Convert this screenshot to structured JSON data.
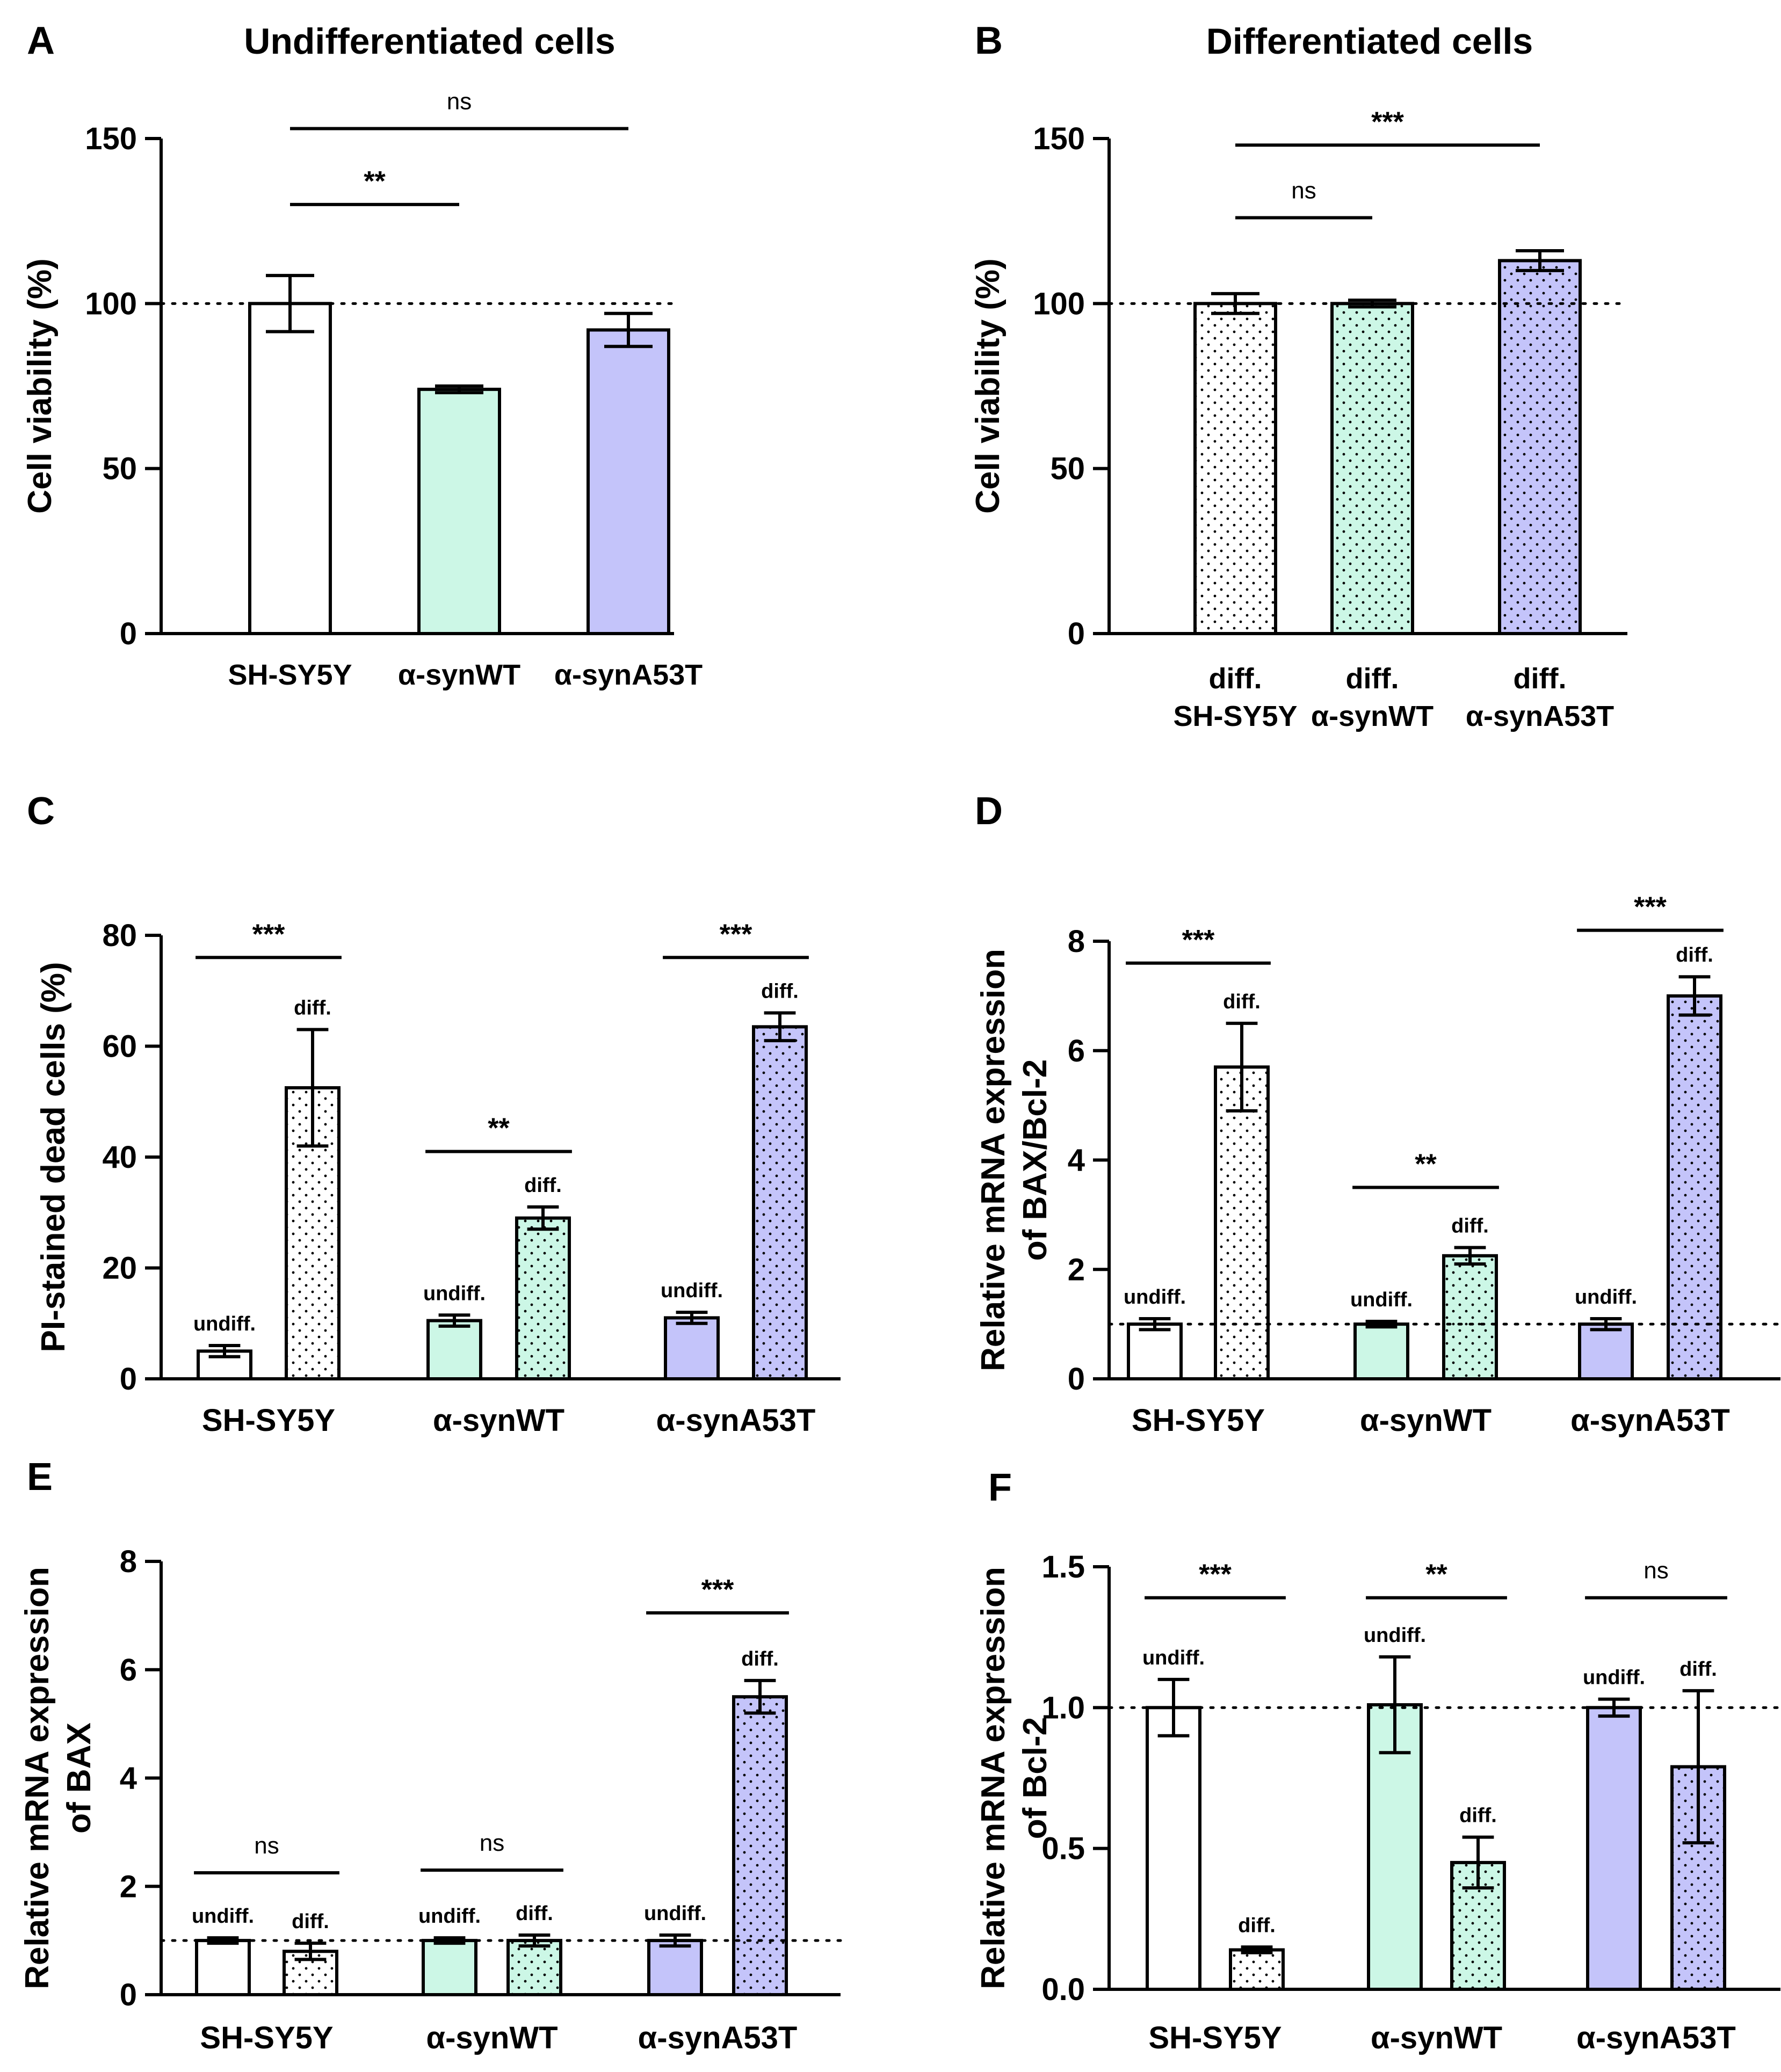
{
  "colors": {
    "control": "#ffffff",
    "wt": "#ccf7e6",
    "a53t": "#c4c4fa",
    "stroke": "#000000"
  },
  "chart_data": [
    {
      "id": "A",
      "panel_label": "A",
      "title": "Undifferentiated cells",
      "type": "bar",
      "ylabel": [
        "Cell viability (%)"
      ],
      "ylim": [
        0,
        150
      ],
      "yticks": [
        0,
        50,
        100,
        150
      ],
      "reference_line": 100,
      "groups": [
        {
          "label": [
            "SH-SY5Y"
          ],
          "bars": [
            {
              "value": 100,
              "error": 8.5,
              "color": "control",
              "dotted": false,
              "tag": ""
            }
          ]
        },
        {
          "label": [
            "α-synWT"
          ],
          "bars": [
            {
              "value": 74,
              "error": 1,
              "color": "wt",
              "dotted": false,
              "tag": ""
            }
          ]
        },
        {
          "label": [
            "α-synA53T"
          ],
          "bars": [
            {
              "value": 92,
              "error": 5,
              "color": "a53t",
              "dotted": false,
              "tag": ""
            }
          ]
        }
      ],
      "significance": [
        {
          "from": [
            0,
            0
          ],
          "to": [
            1,
            0
          ],
          "label": "**",
          "y": 130
        },
        {
          "from": [
            0,
            0
          ],
          "to": [
            2,
            0
          ],
          "label": "ns",
          "y": 153
        }
      ]
    },
    {
      "id": "B",
      "panel_label": "B",
      "title": "Differentiated cells",
      "type": "bar",
      "ylabel": [
        "Cell viability (%)"
      ],
      "ylim": [
        0,
        150
      ],
      "yticks": [
        0,
        50,
        100,
        150
      ],
      "reference_line": 100,
      "groups": [
        {
          "label": [
            "diff.",
            "SH-SY5Y"
          ],
          "bars": [
            {
              "value": 100,
              "error": 3,
              "color": "control",
              "dotted": true,
              "tag": ""
            }
          ]
        },
        {
          "label": [
            "diff.",
            "α-synWT"
          ],
          "bars": [
            {
              "value": 100,
              "error": 1,
              "color": "wt",
              "dotted": true,
              "tag": ""
            }
          ]
        },
        {
          "label": [
            "diff.",
            "α-synA53T"
          ],
          "bars": [
            {
              "value": 113,
              "error": 3,
              "color": "a53t",
              "dotted": true,
              "tag": ""
            }
          ]
        }
      ],
      "significance": [
        {
          "from": [
            0,
            0
          ],
          "to": [
            1,
            0
          ],
          "label": "ns",
          "y": 126
        },
        {
          "from": [
            0,
            0
          ],
          "to": [
            2,
            0
          ],
          "label": "***",
          "y": 148
        }
      ]
    },
    {
      "id": "C",
      "panel_label": "C",
      "title": "",
      "type": "bar",
      "ylabel": [
        "PI-stained dead cells (%)"
      ],
      "ylim": [
        0,
        80
      ],
      "yticks": [
        0,
        20,
        40,
        60,
        80
      ],
      "reference_line": null,
      "groups": [
        {
          "label": [
            "SH-SY5Y"
          ],
          "bars": [
            {
              "value": 5,
              "error": 1,
              "color": "control",
              "dotted": false,
              "tag": "undiff."
            },
            {
              "value": 52.5,
              "error": 10.5,
              "color": "control",
              "dotted": true,
              "tag": "diff."
            }
          ]
        },
        {
          "label": [
            "α-synWT"
          ],
          "bars": [
            {
              "value": 10.5,
              "error": 1,
              "color": "wt",
              "dotted": false,
              "tag": "undiff."
            },
            {
              "value": 29,
              "error": 2,
              "color": "wt",
              "dotted": true,
              "tag": "diff."
            }
          ]
        },
        {
          "label": [
            "α-synA53T"
          ],
          "bars": [
            {
              "value": 11,
              "error": 1,
              "color": "a53t",
              "dotted": false,
              "tag": "undiff."
            },
            {
              "value": 63.5,
              "error": 2.5,
              "color": "a53t",
              "dotted": true,
              "tag": "diff."
            }
          ]
        }
      ],
      "significance": [
        {
          "from": [
            0,
            0
          ],
          "to": [
            0,
            1
          ],
          "label": "***",
          "y": 76
        },
        {
          "from": [
            1,
            0
          ],
          "to": [
            1,
            1
          ],
          "label": "**",
          "y": 41
        },
        {
          "from": [
            2,
            0
          ],
          "to": [
            2,
            1
          ],
          "label": "***",
          "y": 76
        }
      ]
    },
    {
      "id": "D",
      "panel_label": "D",
      "title": "",
      "type": "bar",
      "ylabel": [
        "Relative mRNA expression",
        "of BAX/Bcl-2"
      ],
      "ylim": [
        0,
        8
      ],
      "yticks": [
        0,
        2,
        4,
        6,
        8
      ],
      "reference_line": 1,
      "groups": [
        {
          "label": [
            "SH-SY5Y"
          ],
          "bars": [
            {
              "value": 1,
              "error": 0.1,
              "color": "control",
              "dotted": false,
              "tag": "undiff."
            },
            {
              "value": 5.7,
              "error": 0.8,
              "color": "control",
              "dotted": true,
              "tag": "diff."
            }
          ]
        },
        {
          "label": [
            "α-synWT"
          ],
          "bars": [
            {
              "value": 1,
              "error": 0.05,
              "color": "wt",
              "dotted": false,
              "tag": "undiff."
            },
            {
              "value": 2.25,
              "error": 0.15,
              "color": "wt",
              "dotted": true,
              "tag": "diff."
            }
          ]
        },
        {
          "label": [
            "α-synA53T"
          ],
          "bars": [
            {
              "value": 1,
              "error": 0.1,
              "color": "a53t",
              "dotted": false,
              "tag": "undiff."
            },
            {
              "value": 7,
              "error": 0.35,
              "color": "a53t",
              "dotted": true,
              "tag": "diff."
            }
          ]
        }
      ],
      "significance": [
        {
          "from": [
            0,
            0
          ],
          "to": [
            0,
            1
          ],
          "label": "***",
          "y": 7.6
        },
        {
          "from": [
            1,
            0
          ],
          "to": [
            1,
            1
          ],
          "label": "**",
          "y": 3.5
        },
        {
          "from": [
            2,
            0
          ],
          "to": [
            2,
            1
          ],
          "label": "***",
          "y": 8.2
        }
      ]
    },
    {
      "id": "E",
      "panel_label": "E",
      "title": "",
      "type": "bar",
      "ylabel": [
        "Relative mRNA expression",
        "of BAX"
      ],
      "ylim": [
        0,
        8
      ],
      "yticks": [
        0,
        2,
        4,
        6,
        8
      ],
      "reference_line": 1,
      "groups": [
        {
          "label": [
            "SH-SY5Y"
          ],
          "bars": [
            {
              "value": 1,
              "error": 0.05,
              "color": "control",
              "dotted": false,
              "tag": "undiff."
            },
            {
              "value": 0.8,
              "error": 0.15,
              "color": "control",
              "dotted": true,
              "tag": "diff."
            }
          ]
        },
        {
          "label": [
            "α-synWT"
          ],
          "bars": [
            {
              "value": 1,
              "error": 0.05,
              "color": "wt",
              "dotted": false,
              "tag": "undiff."
            },
            {
              "value": 1,
              "error": 0.1,
              "color": "wt",
              "dotted": true,
              "tag": "diff."
            }
          ]
        },
        {
          "label": [
            "α-synA53T"
          ],
          "bars": [
            {
              "value": 1,
              "error": 0.1,
              "color": "a53t",
              "dotted": false,
              "tag": "undiff."
            },
            {
              "value": 5.5,
              "error": 0.3,
              "color": "a53t",
              "dotted": true,
              "tag": "diff."
            }
          ]
        }
      ],
      "significance": [
        {
          "from": [
            0,
            0
          ],
          "to": [
            0,
            1
          ],
          "label": "ns",
          "y": 2.25
        },
        {
          "from": [
            1,
            0
          ],
          "to": [
            1,
            1
          ],
          "label": "ns",
          "y": 2.3
        },
        {
          "from": [
            2,
            0
          ],
          "to": [
            2,
            1
          ],
          "label": "***",
          "y": 7.05
        }
      ]
    },
    {
      "id": "F",
      "panel_label": "F",
      "title": "",
      "type": "bar",
      "ylabel": [
        "Relative mRNA expression",
        "of Bcl-2"
      ],
      "ylim": [
        0,
        1.5
      ],
      "yticks": [
        0,
        0.5,
        1,
        1.5
      ],
      "ytick_labels": [
        "0.0",
        "0.5",
        "1.0",
        "1.5"
      ],
      "reference_line": 1,
      "groups": [
        {
          "label": [
            "SH-SY5Y"
          ],
          "bars": [
            {
              "value": 1,
              "error": 0.1,
              "color": "control",
              "dotted": false,
              "tag": "undiff."
            },
            {
              "value": 0.14,
              "error": 0.01,
              "color": "control",
              "dotted": true,
              "tag": "diff."
            }
          ]
        },
        {
          "label": [
            "α-synWT"
          ],
          "bars": [
            {
              "value": 1.01,
              "error": 0.17,
              "color": "wt",
              "dotted": false,
              "tag": "undiff."
            },
            {
              "value": 0.45,
              "error": 0.09,
              "color": "wt",
              "dotted": true,
              "tag": "diff."
            }
          ]
        },
        {
          "label": [
            "α-synA53T"
          ],
          "bars": [
            {
              "value": 1,
              "error": 0.03,
              "color": "a53t",
              "dotted": false,
              "tag": "undiff."
            },
            {
              "value": 0.79,
              "error": 0.27,
              "color": "a53t",
              "dotted": true,
              "tag": "diff."
            }
          ]
        }
      ],
      "significance": [
        {
          "from": [
            0,
            0
          ],
          "to": [
            0,
            1
          ],
          "label": "***",
          "y": 1.39
        },
        {
          "from": [
            1,
            0
          ],
          "to": [
            1,
            1
          ],
          "label": "**",
          "y": 1.39
        },
        {
          "from": [
            2,
            0
          ],
          "to": [
            2,
            1
          ],
          "label": "ns",
          "y": 1.39
        }
      ]
    }
  ]
}
